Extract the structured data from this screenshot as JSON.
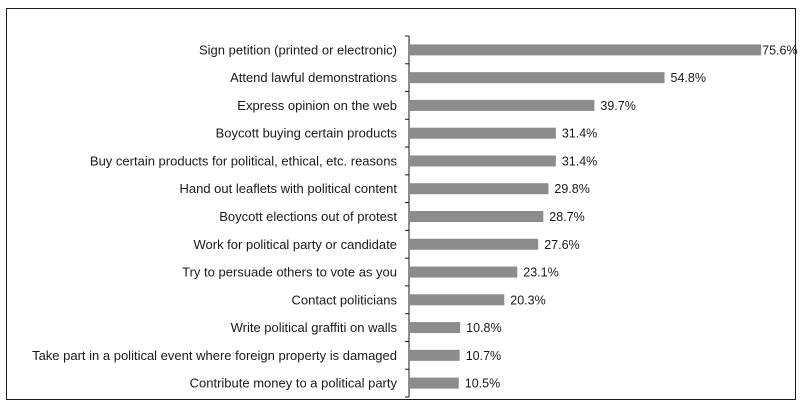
{
  "chart_data": {
    "type": "bar",
    "orientation": "horizontal",
    "title": "",
    "xlabel": "",
    "ylabel": "",
    "xlim": [
      0,
      76
    ],
    "grid": false,
    "legend": "none",
    "colors": {
      "bar": "#8c8c8c",
      "axis": "#1a1a1a",
      "text": "#1a1a1a"
    },
    "categories": [
      "Sign petition (printed or electronic)",
      "Attend lawful demonstrations",
      "Express opinion on the web",
      "Boycott buying certain products",
      "Buy certain products for political, ethical, etc. reasons",
      "Hand out leaflets with political content",
      "Boycott elections out of protest",
      "Work for political party or candidate",
      "Try to persuade others to vote as you",
      "Contact politicians",
      "Write political graffiti on walls",
      "Take part in a political event where foreign property is damaged",
      "Contribute money to a political party"
    ],
    "values": [
      75.6,
      54.8,
      39.7,
      31.4,
      31.4,
      29.8,
      28.7,
      27.6,
      23.1,
      20.3,
      10.8,
      10.7,
      10.5
    ],
    "value_labels": [
      "75.6%",
      "54.8%",
      "39.7%",
      "31.4%",
      "31.4%",
      "29.8%",
      "28.7%",
      "27.6%",
      "23.1%",
      "20.3%",
      "10.8%",
      "10.7%",
      "10.5%"
    ]
  }
}
